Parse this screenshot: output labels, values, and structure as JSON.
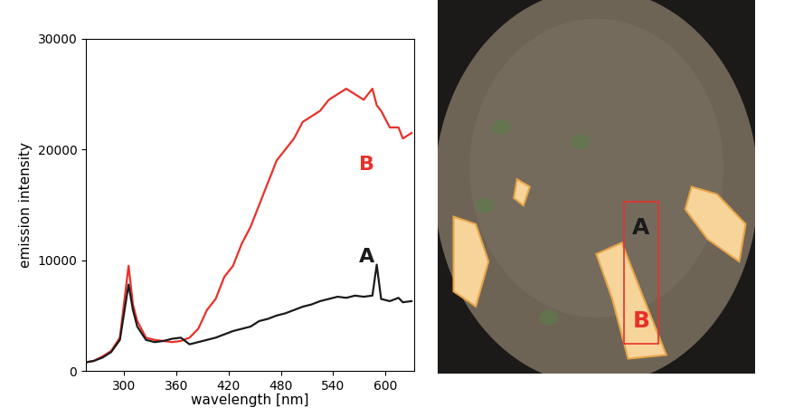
{
  "chart_data": {
    "type": "line",
    "x_label": "wavelength [nm]",
    "y_label": "emission intensity",
    "x": [
      258,
      265,
      275,
      285,
      295,
      305,
      310,
      315,
      325,
      335,
      345,
      355,
      365,
      375,
      385,
      395,
      405,
      415,
      425,
      435,
      445,
      455,
      465,
      475,
      485,
      495,
      505,
      515,
      525,
      535,
      545,
      555,
      565,
      575,
      585,
      590,
      595,
      605,
      615,
      620,
      630
    ],
    "series": [
      {
        "color": "#e8312a",
        "values": [
          800,
          900,
          1300,
          1800,
          3000,
          9500,
          6000,
          4500,
          3000,
          2800,
          2700,
          2600,
          2700,
          3000,
          3800,
          5500,
          6500,
          8500,
          9500,
          11500,
          13000,
          15000,
          17000,
          19000,
          20000,
          21000,
          22500,
          23000,
          23500,
          24500,
          25000,
          25500,
          25000,
          24500,
          25500,
          24000,
          23500,
          22000,
          22000,
          21000,
          21500
        ]
      },
      {
        "color": "#1a1a1a",
        "values": [
          800,
          900,
          1200,
          1700,
          2800,
          7800,
          5500,
          4000,
          2800,
          2600,
          2700,
          2900,
          3000,
          2400,
          2600,
          2800,
          3000,
          3300,
          3600,
          3800,
          4000,
          4500,
          4700,
          5000,
          5200,
          5500,
          5800,
          6000,
          6300,
          6500,
          6700,
          6600,
          6800,
          6700,
          6800,
          9600,
          6500,
          6300,
          6600,
          6200,
          6300
        ]
      }
    ],
    "annotations": [
      {
        "text": "B",
        "x": 578,
        "y": 18600,
        "color": "#e8312a"
      },
      {
        "text": "A",
        "x": 578,
        "y": 10300,
        "color": "#1a1a1a"
      }
    ],
    "xlim": [
      256,
      633
    ],
    "ylim": [
      0,
      30000
    ],
    "xticks": [
      300,
      360,
      420,
      480,
      540,
      600
    ],
    "yticks": [
      0,
      10000,
      20000,
      30000
    ],
    "grid": false
  },
  "image": {
    "labels": [
      {
        "text": "A",
        "color": "#1a1a1a"
      },
      {
        "text": "B",
        "color": "#e8312a"
      }
    ],
    "frame_color": "#e8312a"
  }
}
